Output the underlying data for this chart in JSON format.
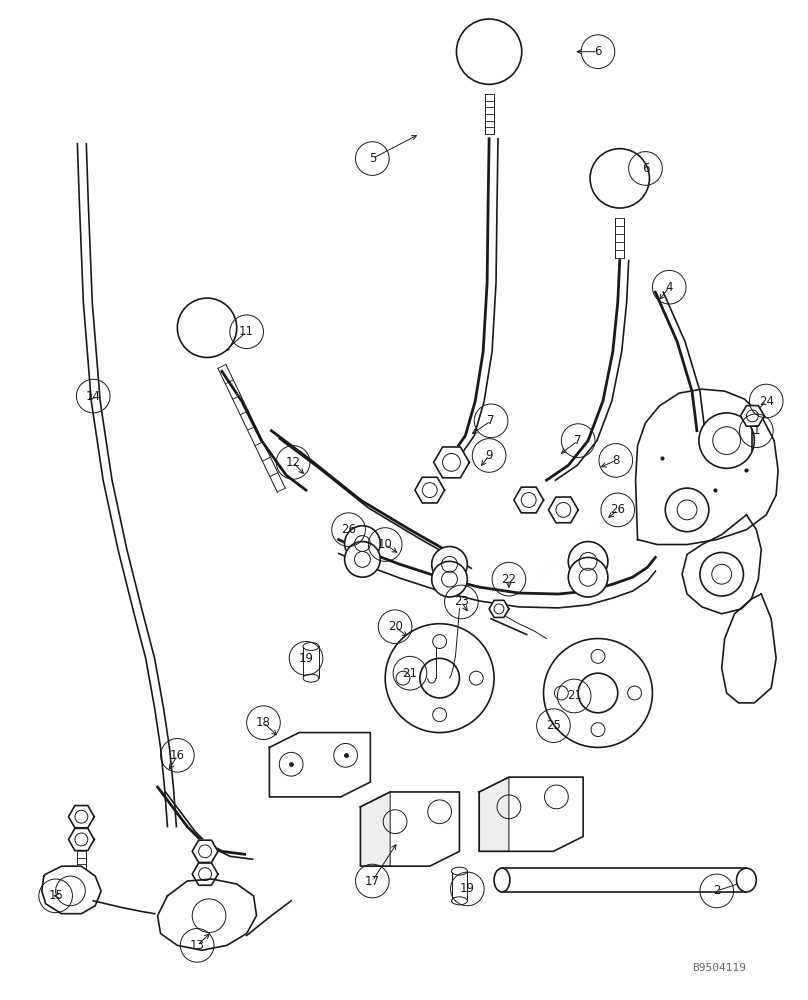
{
  "bg_color": "#ffffff",
  "lc": "#1a1a1a",
  "watermark": "B9504119",
  "lw": 1.2,
  "lw_thin": 0.7,
  "lw_thick": 2.0,
  "figsize": [
    8.08,
    10.0
  ],
  "dpi": 100
}
